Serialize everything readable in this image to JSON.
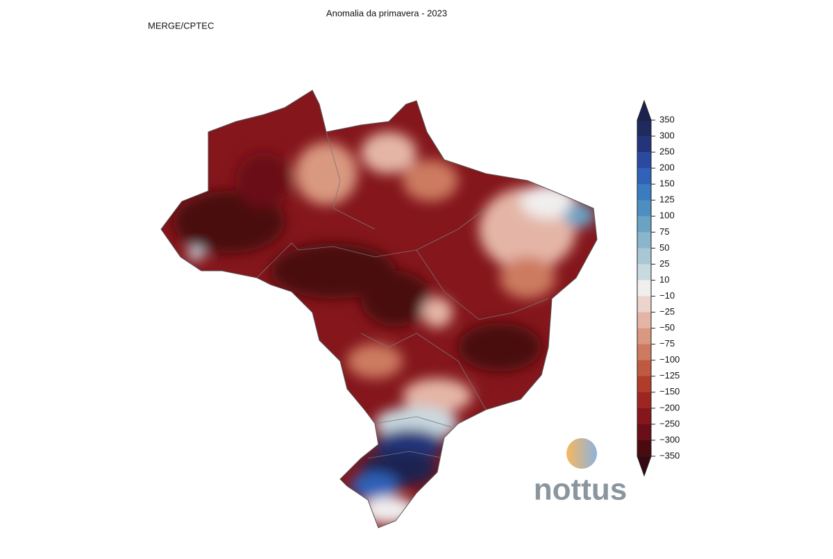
{
  "title": "Anomalia da primavera - 2023",
  "source": "MERGE/CPTEC",
  "legend": {
    "ticks": [
      350,
      300,
      250,
      200,
      150,
      125,
      100,
      75,
      50,
      25,
      10,
      {
        "value": -10,
        "label": "−10"
      },
      {
        "value": -25,
        "label": "−25"
      },
      {
        "value": -50,
        "label": "−50"
      },
      {
        "value": -75,
        "label": "−75"
      },
      {
        "value": -100,
        "label": "−100"
      },
      {
        "value": -125,
        "label": "−125"
      },
      {
        "value": -150,
        "label": "−150"
      },
      {
        "value": -200,
        "label": "−200"
      },
      {
        "value": -250,
        "label": "−250"
      },
      {
        "value": -300,
        "label": "−300"
      },
      {
        "value": -350,
        "label": "−350"
      }
    ],
    "colors": [
      "#1a2350",
      "#1f2a5e",
      "#23347a",
      "#2a4aa0",
      "#2f62b8",
      "#3a7cc0",
      "#4d8fc0",
      "#6aa3c4",
      "#8ab6cc",
      "#a9c7d4",
      "#c9d9e0",
      "#f1eeee",
      "#ecd3cc",
      "#e4b5a6",
      "#d99880",
      "#cc7a60",
      "#bd5a40",
      "#b03c2a",
      "#9e2622",
      "#84161c",
      "#6a0f18",
      "#4a0a10",
      "#360812"
    ]
  },
  "logo": "nottus"
}
